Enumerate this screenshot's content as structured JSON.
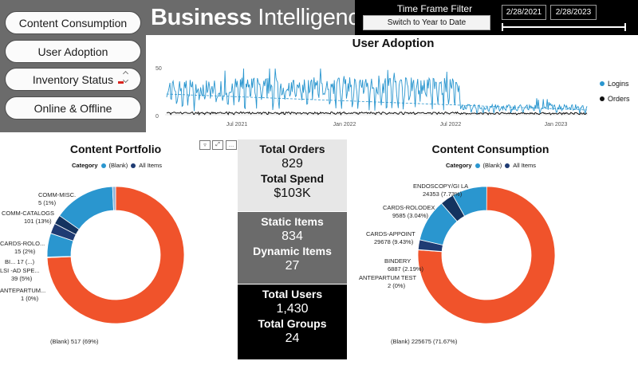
{
  "nav": {
    "content_consumption": "Content Consumption",
    "user_adoption": "User Adoption",
    "inventory_status": "Inventory Status",
    "online_offline": "Online & Offline"
  },
  "banner": {
    "bold": "Business",
    "light": " Intelligence"
  },
  "time_filter": {
    "label": "Time Frame Filter",
    "switch_label": "Switch to Year to Date",
    "start_date": "2/28/2021",
    "end_date": "2/28/2023"
  },
  "adoption": {
    "title": "User Adoption",
    "legend": {
      "logins": "Logins",
      "orders": "Orders"
    },
    "colors": {
      "logins": "#2a96cf",
      "orders": "#111111"
    }
  },
  "portfolio": {
    "title": "Content Portfolio",
    "legend_label": "Category",
    "legend_blank": "(Blank)",
    "legend_all": "All Items",
    "labels": {
      "comm_misc_name": "COMM-MISC.",
      "comm_misc_value": "5 (1%)",
      "comm_catalogs_name": "COMM-CATALOGS",
      "comm_catalogs_value": "101 (13%)",
      "cards_rolo_name": "CARDS-ROLO...",
      "cards_rolo_value": "15 (2%)",
      "bi_label": "BI... 17 (...)",
      "lsi_name": "LSI -AD SPE...",
      "lsi_value": "39 (5%)",
      "antepartum_name": "ANTEPARTUM...",
      "antepartum_value": "1 (0%)",
      "blank": "(Blank) 517 (69%)"
    }
  },
  "consumption": {
    "title": "Content Consumption",
    "legend_label": "Category",
    "legend_blank": "(Blank)",
    "legend_all": "All Items",
    "labels": {
      "endoscopy_name": "ENDOSCOPY/GI LA",
      "endoscopy_value": "24353 (7.73%)",
      "cards_rolodex_name": "CARDS-ROLODEX",
      "cards_rolodex_value": "9585 (3.04%)",
      "cards_appoint_name": "CARDS-APPOINT",
      "cards_appoint_value": "29678 (9.43%)",
      "bindery_name": "BINDERY",
      "bindery_value": "6887 (2.19%)",
      "antepartum_name": "ANTEPARTUM TEST",
      "antepartum_value": "2 (0%)",
      "blank": "(Blank) 225675 (71.67%)"
    }
  },
  "kpis": {
    "total_orders_label": "Total Orders",
    "total_orders_value": "829",
    "total_spend_label": "Total Spend",
    "total_spend_value": "$103K",
    "static_items_label": "Static Items",
    "static_items_value": "834",
    "dynamic_items_label": "Dynamic Items",
    "dynamic_items_value": "27",
    "total_users_label": "Total Users",
    "total_users_value": "1,430",
    "total_groups_label": "Total Groups",
    "total_groups_value": "24"
  },
  "chart_data": [
    {
      "type": "line",
      "title": "User Adoption",
      "xlabel": "",
      "ylabel": "",
      "x_ticks": [
        "Jul 2021",
        "Jan 2022",
        "Jul 2022",
        "Jan 2023"
      ],
      "y_ticks": [
        0,
        50
      ],
      "ylim": [
        0,
        60
      ],
      "series": [
        {
          "name": "Logins",
          "description": "daily logins, mostly 10-40 with peaks near 55, dropping to under 10 after Jul 2022"
        },
        {
          "name": "Orders",
          "description": "daily orders, near 0-3 throughout"
        }
      ]
    },
    {
      "type": "pie",
      "title": "Content Portfolio",
      "categories": [
        "(Blank)",
        "ANTEPARTUM...",
        "LSI -AD SPE...",
        "BI...",
        "CARDS-ROLO...",
        "COMM-CATALOGS",
        "COMM-MISC."
      ],
      "values": [
        517,
        1,
        39,
        17,
        15,
        101,
        5
      ],
      "percent_labels": [
        "69%",
        "0%",
        "5%",
        "",
        "2%",
        "13%",
        "1%"
      ]
    },
    {
      "type": "pie",
      "title": "Content Consumption",
      "categories": [
        "(Blank)",
        "ANTEPARTUM TEST",
        "BINDERY",
        "CARDS-APPOINT",
        "CARDS-ROLODEX",
        "ENDOSCOPY/GI LA"
      ],
      "values": [
        225675,
        2,
        6887,
        29678,
        9585,
        24353
      ],
      "percent_labels": [
        "71.67%",
        "0%",
        "2.19%",
        "9.43%",
        "3.04%",
        "7.73%"
      ]
    }
  ]
}
